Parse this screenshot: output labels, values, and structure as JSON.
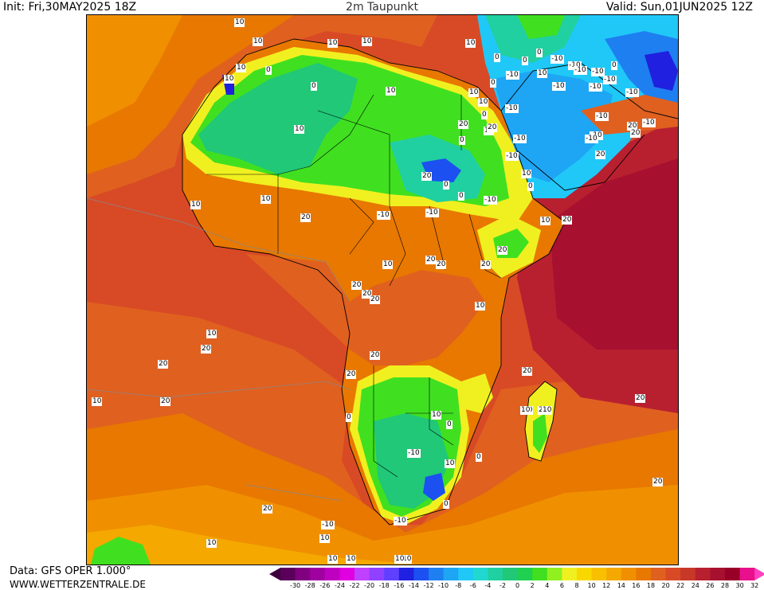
{
  "header": {
    "init": "Init: Fri,30MAY2025 18Z",
    "title": "2m Taupunkt",
    "valid": "Valid: Sun,01JUN2025 12Z"
  },
  "footer": {
    "data_source": "Data: GFS OPER 1.000°",
    "website": "WWW.WETTERZENTRALE.DE"
  },
  "legend": {
    "ticks": [
      "-30",
      "-28",
      "-26",
      "-24",
      "-22",
      "-20",
      "-18",
      "-16",
      "-14",
      "-12",
      "-10",
      "-8",
      "-6",
      "-4",
      "-2",
      "0",
      "2",
      "4",
      "6",
      "8",
      "10",
      "12",
      "14",
      "16",
      "18",
      "20",
      "22",
      "24",
      "26",
      "28",
      "30",
      "32"
    ],
    "colors": [
      "#5a005a",
      "#800080",
      "#a000a0",
      "#c000c0",
      "#e000e0",
      "#c040ff",
      "#9040ff",
      "#6040ff",
      "#2020e0",
      "#1c50f0",
      "#1e7ff0",
      "#1ea6f4",
      "#20c8f8",
      "#20d8d0",
      "#20d0a0",
      "#20c878",
      "#20d050",
      "#40e020",
      "#90f020",
      "#f0f020",
      "#f8d800",
      "#f8c000",
      "#f4a800",
      "#f09000",
      "#e87800",
      "#e06020",
      "#d84a26",
      "#c83828",
      "#b82030",
      "#a81030",
      "#980028",
      "#e8108c"
    ],
    "arrow_low_color": "#3c003c",
    "arrow_high_color": "#ff40c0"
  },
  "map": {
    "contour_labels": [
      "10",
      "10",
      "10",
      "10",
      "10",
      "0",
      "10",
      "10",
      "0",
      "10",
      "0",
      "10",
      "0",
      "0",
      "-10",
      "-10",
      "-10",
      "0",
      "-10",
      "-10",
      "-10",
      "-10",
      "10",
      "0",
      "-10",
      "10",
      "0",
      "10",
      "20",
      "20",
      "-10",
      "-10",
      "-10",
      "-10",
      "20",
      "20",
      "-10",
      "-10",
      "20",
      "10",
      "0",
      "-10",
      "-10",
      "20",
      "10",
      "20",
      "0",
      "0",
      "-10",
      "20",
      "10",
      "10",
      "20",
      "-10",
      "-10",
      "0",
      "10",
      "20",
      "10",
      "20",
      "20",
      "20",
      "20",
      "20",
      "20",
      "10",
      "20",
      "10",
      "20",
      "20",
      "20",
      "20",
      "20",
      "10",
      "20",
      "20",
      "20",
      "10",
      "0",
      "0",
      "-10",
      "10",
      "0",
      "0",
      "-10",
      "-10",
      "10",
      "20",
      "20",
      "10",
      "10",
      "10",
      "10",
      "10",
      "10",
      "10",
      "10",
      "10",
      "-10"
    ]
  }
}
